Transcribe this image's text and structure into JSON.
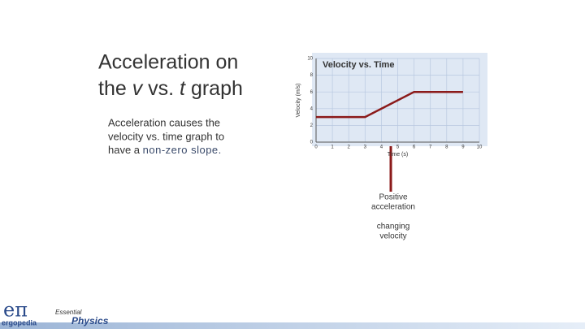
{
  "slide": {
    "heading": {
      "line1": "Acceleration on",
      "line2": [
        "the ",
        "v",
        " vs. ",
        "t",
        " graph"
      ]
    },
    "body": [
      "Acceleration causes the",
      "velocity vs. time graph to",
      [
        "have a ",
        "non-zero slope."
      ]
    ],
    "annotation": {
      "line1": [
        "Positive",
        "acceleration"
      ],
      "line2": [
        "changing",
        "velocity"
      ]
    },
    "logo": {
      "symbol": "eπ",
      "name": "ergopedia",
      "series_top": "Essential",
      "series": "Physics"
    }
  },
  "chart_data": {
    "type": "line",
    "title": "Velocity vs. Time",
    "x_label": "Time (s)",
    "y_label": "Velocity (m/s)",
    "x": [
      0,
      3,
      6,
      9
    ],
    "series": [
      {
        "name": "velocity",
        "color": "#8b1a1a",
        "values": [
          3,
          3,
          6,
          6
        ]
      }
    ],
    "xlim": [
      0,
      10
    ],
    "xticks": [
      0,
      1,
      2,
      3,
      4,
      5,
      6,
      7,
      8,
      9,
      10
    ],
    "ylim": [
      0,
      10
    ],
    "yticks": [
      0,
      2,
      4,
      6,
      8,
      10
    ],
    "grid": true
  }
}
